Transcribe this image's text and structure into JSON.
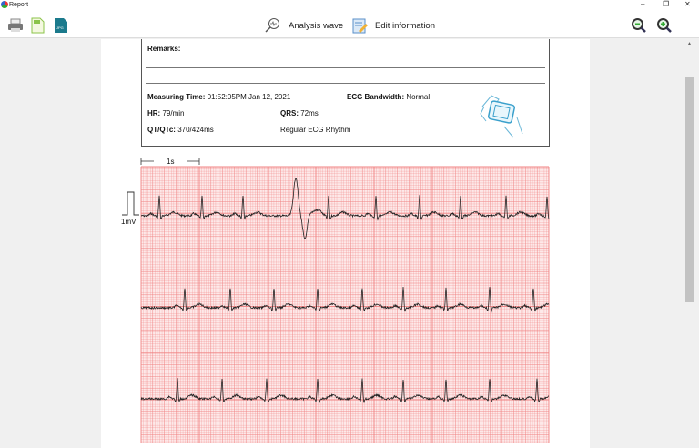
{
  "window": {
    "title": "Report",
    "minimize": "–",
    "maximize": "❐",
    "close": "✕"
  },
  "toolbar": {
    "print_icon": "printer-icon",
    "pdf_icon": "pdf-icon",
    "jpg_icon": "jpg-icon",
    "jpg_label": "JPG",
    "analysis_label": "Analysis wave",
    "edit_label": "Edit information",
    "zoom_out_icon": "zoom-out-icon",
    "zoom_in_icon": "zoom-in-icon"
  },
  "report": {
    "remarks_label": "Remarks:",
    "measuring_time_label": "Measuring Time:",
    "measuring_time": " 01:52:05PM Jan 12, 2021",
    "bandwidth_label": "ECG Bandwidth:",
    "bandwidth": " Normal",
    "hr_label": "HR:",
    "hr": " 79/min",
    "qrs_label": "QRS:",
    "qrs": " 72ms",
    "qt_label": "QT/QTc:",
    "qt": " 370/424ms",
    "rhythm": "Regular ECG Rhythm"
  },
  "ecg": {
    "time_scale": "1s",
    "amp_scale": "1mV",
    "grid_color": "#f08080",
    "paper_color": "#fde9e9",
    "trace_color": "#222222"
  }
}
